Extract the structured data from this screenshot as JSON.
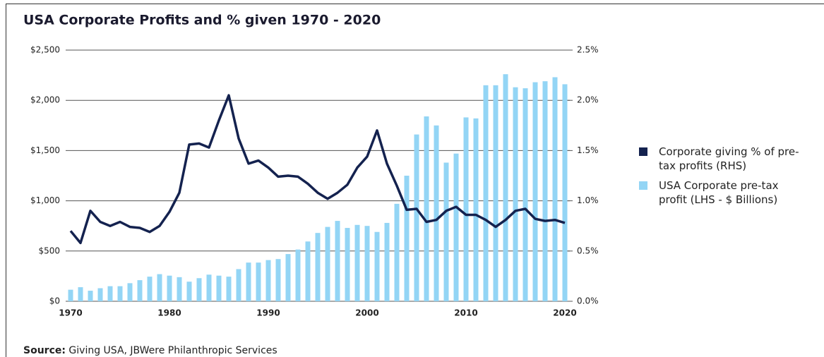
{
  "chart_data": {
    "type": "bar",
    "title": "USA Corporate Profits and % given 1970 - 2020",
    "x": [
      1970,
      1971,
      1972,
      1973,
      1974,
      1975,
      1976,
      1977,
      1978,
      1979,
      1980,
      1981,
      1982,
      1983,
      1984,
      1985,
      1986,
      1987,
      1988,
      1989,
      1990,
      1991,
      1992,
      1993,
      1994,
      1995,
      1996,
      1997,
      1998,
      1999,
      2000,
      2001,
      2002,
      2003,
      2004,
      2005,
      2006,
      2007,
      2008,
      2009,
      2010,
      2011,
      2012,
      2013,
      2014,
      2015,
      2016,
      2017,
      2018,
      2019,
      2020
    ],
    "series": [
      {
        "name": "USA Corporate pre-tax profit (LHS - $ Billions)",
        "type": "bar",
        "color": "#93d5f5",
        "values": [
          115,
          140,
          105,
          130,
          150,
          150,
          180,
          210,
          245,
          270,
          255,
          240,
          195,
          230,
          265,
          255,
          245,
          320,
          385,
          385,
          410,
          420,
          470,
          515,
          595,
          680,
          740,
          800,
          730,
          760,
          750,
          690,
          780,
          970,
          1250,
          1660,
          1840,
          1750,
          1380,
          1470,
          1830,
          1820,
          2150,
          2150,
          2260,
          2130,
          2120,
          2180,
          2190,
          2230,
          2160
        ]
      },
      {
        "name": "Corporate giving % of pre-tax profits (RHS)",
        "type": "line",
        "axis": "y2",
        "color": "#14224f",
        "values": [
          0.7,
          0.58,
          0.9,
          0.79,
          0.75,
          0.79,
          0.74,
          0.73,
          0.69,
          0.75,
          0.89,
          1.08,
          1.56,
          1.57,
          1.53,
          1.8,
          2.05,
          1.62,
          1.37,
          1.4,
          1.33,
          1.24,
          1.25,
          1.24,
          1.17,
          1.08,
          1.02,
          1.08,
          1.16,
          1.33,
          1.44,
          1.7,
          1.37,
          1.15,
          0.91,
          0.92,
          0.79,
          0.81,
          0.9,
          0.94,
          0.86,
          0.86,
          0.81,
          0.74,
          0.81,
          0.9,
          0.92,
          0.82,
          0.8,
          0.81,
          0.78
        ]
      }
    ],
    "xlim": [
      1969.5,
      2020.5
    ],
    "xticks": [
      1970,
      1980,
      1990,
      2000,
      2010,
      2020
    ],
    "ylim": [
      0,
      2500
    ],
    "yticks": [
      {
        "value": 0,
        "label": "$0"
      },
      {
        "value": 500,
        "label": "$500"
      },
      {
        "value": 1000,
        "label": "$1,000"
      },
      {
        "value": 1500,
        "label": "$1,500"
      },
      {
        "value": 2000,
        "label": "$2,000"
      },
      {
        "value": 2500,
        "label": "$2,500"
      }
    ],
    "y2lim": [
      0,
      2.5
    ],
    "y2ticks": [
      {
        "value": 0,
        "label": "0.0%"
      },
      {
        "value": 0.5,
        "label": "0.5%"
      },
      {
        "value": 1,
        "label": "1.0%"
      },
      {
        "value": 1.5,
        "label": "1.5%"
      },
      {
        "value": 2,
        "label": "2.0%"
      },
      {
        "value": 2.5,
        "label": "2.5%"
      }
    ],
    "grid": true,
    "legend": "right",
    "source_label": "Source:",
    "source": "Giving USA, JBWere Philanthropic Services"
  }
}
